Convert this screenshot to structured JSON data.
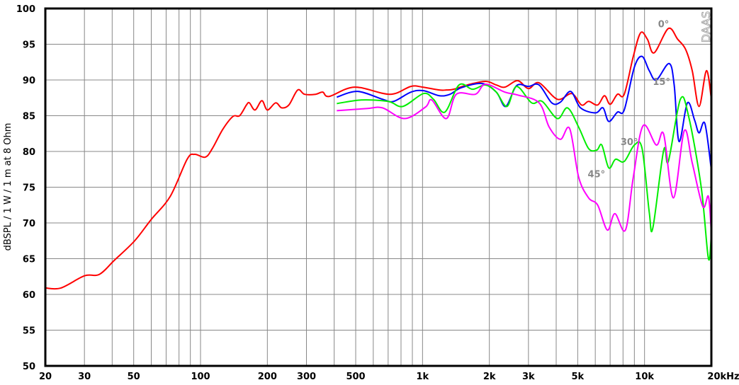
{
  "chart_data": {
    "type": "line",
    "title": "",
    "xlabel": "",
    "ylabel": "dBSPL / 1 W / 1 m at 8 Ohm",
    "x_scale": "log",
    "xlim": [
      20,
      20000
    ],
    "ylim": [
      50,
      100
    ],
    "grid": true,
    "watermark": "DAAS",
    "x_ticks": [
      {
        "value": 20,
        "label": "20"
      },
      {
        "value": 30,
        "label": "30"
      },
      {
        "value": 50,
        "label": "50"
      },
      {
        "value": 100,
        "label": "100"
      },
      {
        "value": 200,
        "label": "200"
      },
      {
        "value": 300,
        "label": "300"
      },
      {
        "value": 500,
        "label": "500"
      },
      {
        "value": 1000,
        "label": "1k"
      },
      {
        "value": 2000,
        "label": "2k"
      },
      {
        "value": 3000,
        "label": "3k"
      },
      {
        "value": 5000,
        "label": "5k"
      },
      {
        "value": 10000,
        "label": "10k"
      },
      {
        "value": 20000,
        "label": "20kHz"
      }
    ],
    "y_ticks": [
      50,
      55,
      60,
      65,
      70,
      75,
      80,
      85,
      90,
      95,
      100
    ],
    "series": [
      {
        "name": "0°",
        "color": "#ff0000",
        "label_at": [
          11500,
          97.4
        ],
        "points": [
          [
            20,
            60.9
          ],
          [
            23.5,
            60.9
          ],
          [
            30,
            62.6
          ],
          [
            35,
            62.8
          ],
          [
            41,
            64.8
          ],
          [
            50.5,
            67.5
          ],
          [
            60,
            70.5
          ],
          [
            73,
            73.7
          ],
          [
            87,
            78.9
          ],
          [
            94,
            79.6
          ],
          [
            105,
            79.2
          ],
          [
            113,
            80.4
          ],
          [
            126,
            83.1
          ],
          [
            140,
            84.9
          ],
          [
            150,
            85.0
          ],
          [
            161,
            86.5
          ],
          [
            166,
            86.8
          ],
          [
            176,
            85.8
          ],
          [
            189,
            87.1
          ],
          [
            200,
            85.8
          ],
          [
            218,
            86.8
          ],
          [
            232,
            86.1
          ],
          [
            250,
            86.5
          ],
          [
            274,
            88.6
          ],
          [
            294,
            88.0
          ],
          [
            330,
            88.0
          ],
          [
            355,
            88.3
          ],
          [
            380,
            87.7
          ],
          [
            494,
            89.0
          ],
          [
            712,
            88.0
          ],
          [
            886,
            89.1
          ],
          [
            1000,
            89.0
          ],
          [
            1190,
            88.6
          ],
          [
            1280,
            88.6
          ],
          [
            1380,
            88.7
          ],
          [
            1590,
            89.3
          ],
          [
            1920,
            89.8
          ],
          [
            2150,
            89.3
          ],
          [
            2350,
            89.0
          ],
          [
            2680,
            89.9
          ],
          [
            3000,
            88.8
          ],
          [
            3350,
            89.6
          ],
          [
            4050,
            87.3
          ],
          [
            4700,
            88.1
          ],
          [
            5200,
            86.5
          ],
          [
            5600,
            87.0
          ],
          [
            6150,
            86.5
          ],
          [
            6600,
            87.8
          ],
          [
            7000,
            86.6
          ],
          [
            7550,
            88.0
          ],
          [
            8100,
            88.0
          ],
          [
            8900,
            93.3
          ],
          [
            9600,
            96.6
          ],
          [
            10300,
            95.7
          ],
          [
            11050,
            93.8
          ],
          [
            12800,
            97.2
          ],
          [
            14100,
            95.7
          ],
          [
            15300,
            94.3
          ],
          [
            16400,
            91.3
          ],
          [
            17600,
            86.3
          ],
          [
            19000,
            91.3
          ],
          [
            20000,
            87.3
          ]
        ]
      },
      {
        "name": "15°",
        "color": "#0000ff",
        "label_at": [
          10900,
          89.3
        ],
        "points": [
          [
            411,
            87.6
          ],
          [
            510,
            88.4
          ],
          [
            660,
            87.3
          ],
          [
            740,
            87.0
          ],
          [
            886,
            88.3
          ],
          [
            1010,
            88.5
          ],
          [
            1190,
            87.8
          ],
          [
            1330,
            88.0
          ],
          [
            1490,
            88.9
          ],
          [
            1850,
            89.5
          ],
          [
            2150,
            88.3
          ],
          [
            2370,
            86.3
          ],
          [
            2650,
            89.2
          ],
          [
            3000,
            89.1
          ],
          [
            3350,
            89.3
          ],
          [
            3820,
            86.8
          ],
          [
            4180,
            86.9
          ],
          [
            4650,
            88.4
          ],
          [
            5150,
            86.1
          ],
          [
            6020,
            85.4
          ],
          [
            6500,
            86.1
          ],
          [
            6900,
            84.2
          ],
          [
            7550,
            85.5
          ],
          [
            8100,
            85.8
          ],
          [
            9000,
            91.8
          ],
          [
            9750,
            93.3
          ],
          [
            10500,
            91.3
          ],
          [
            11300,
            90.0
          ],
          [
            12900,
            92.3
          ],
          [
            13600,
            89.3
          ],
          [
            14300,
            81.4
          ],
          [
            15600,
            86.8
          ],
          [
            16800,
            84.4
          ],
          [
            17600,
            82.6
          ],
          [
            18700,
            83.9
          ],
          [
            20000,
            77.4
          ]
        ]
      },
      {
        "name": "30°",
        "color": "#00ee00",
        "label_at": [
          7800,
          80.9
        ],
        "points": [
          [
            411,
            86.7
          ],
          [
            530,
            87.2
          ],
          [
            700,
            87.0
          ],
          [
            815,
            86.3
          ],
          [
            1010,
            88.1
          ],
          [
            1120,
            87.3
          ],
          [
            1260,
            85.5
          ],
          [
            1460,
            89.3
          ],
          [
            1680,
            88.7
          ],
          [
            1920,
            89.3
          ],
          [
            2150,
            88.3
          ],
          [
            2400,
            86.3
          ],
          [
            2650,
            89.1
          ],
          [
            3100,
            86.8
          ],
          [
            3460,
            87.0
          ],
          [
            4050,
            84.6
          ],
          [
            4500,
            86.1
          ],
          [
            5050,
            83.4
          ],
          [
            5600,
            80.4
          ],
          [
            6100,
            80.2
          ],
          [
            6420,
            80.9
          ],
          [
            6900,
            77.7
          ],
          [
            7400,
            78.9
          ],
          [
            8100,
            78.6
          ],
          [
            9000,
            80.9
          ],
          [
            9750,
            80.4
          ],
          [
            10500,
            71.5
          ],
          [
            10900,
            69.3
          ],
          [
            12200,
            80.2
          ],
          [
            12800,
            78.6
          ],
          [
            14500,
            87.3
          ],
          [
            15800,
            84.9
          ],
          [
            18000,
            75.0
          ],
          [
            19400,
            65.0
          ],
          [
            20000,
            68.5
          ]
        ]
      },
      {
        "name": "45°",
        "color": "#ff00ff",
        "label_at": [
          5550,
          76.4
        ],
        "points": [
          [
            411,
            85.7
          ],
          [
            560,
            86.0
          ],
          [
            660,
            86.1
          ],
          [
            830,
            84.6
          ],
          [
            1030,
            86.2
          ],
          [
            1100,
            87.2
          ],
          [
            1280,
            84.6
          ],
          [
            1420,
            88.0
          ],
          [
            1730,
            88.0
          ],
          [
            1920,
            89.4
          ],
          [
            2350,
            88.3
          ],
          [
            2680,
            87.9
          ],
          [
            3350,
            86.8
          ],
          [
            3720,
            83.4
          ],
          [
            4180,
            81.7
          ],
          [
            4600,
            83.2
          ],
          [
            5050,
            76.4
          ],
          [
            5600,
            73.5
          ],
          [
            6150,
            72.5
          ],
          [
            6800,
            69.0
          ],
          [
            7350,
            71.3
          ],
          [
            8200,
            69.0
          ],
          [
            8900,
            76.4
          ],
          [
            9850,
            83.6
          ],
          [
            11300,
            80.9
          ],
          [
            12200,
            82.4
          ],
          [
            13500,
            73.5
          ],
          [
            15100,
            82.9
          ],
          [
            16400,
            78.4
          ],
          [
            18300,
            72.3
          ],
          [
            19400,
            73.7
          ],
          [
            20000,
            68.5
          ]
        ]
      }
    ]
  }
}
